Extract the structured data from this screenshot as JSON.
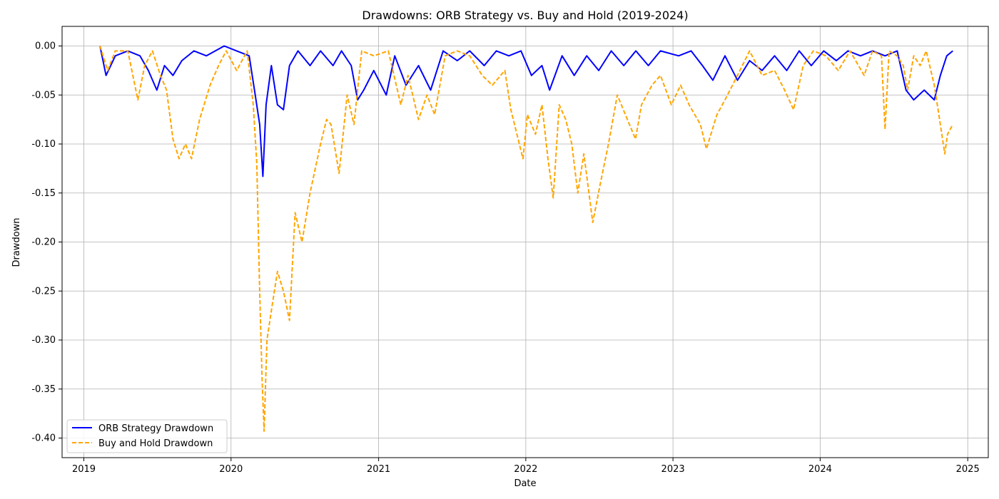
{
  "chart_data": {
    "type": "line",
    "title": "Drawdowns: ORB Strategy vs. Buy and Hold (2019-2024)",
    "xlabel": "Date",
    "ylabel": "Drawdown",
    "xlim": [
      "2018-11-08",
      "2025-02-21"
    ],
    "ylim": [
      -0.42,
      0.02
    ],
    "grid": true,
    "legend_position": "lower-left",
    "x_ticks": [
      "2019",
      "2020",
      "2021",
      "2022",
      "2023",
      "2024",
      "2025"
    ],
    "y_ticks": [
      "0.00",
      "-0.05",
      "-0.10",
      "-0.15",
      "-0.20",
      "-0.25",
      "-0.30",
      "-0.35",
      "-0.40"
    ],
    "series": [
      {
        "name": "ORB Strategy Drawdown",
        "color": "#0000ff",
        "style": "solid",
        "points": [
          [
            "2019-02-10",
            0.0
          ],
          [
            "2019-02-25",
            -0.03
          ],
          [
            "2019-03-20",
            -0.01
          ],
          [
            "2019-04-20",
            -0.005
          ],
          [
            "2019-05-20",
            -0.01
          ],
          [
            "2019-06-10",
            -0.025
          ],
          [
            "2019-07-01",
            -0.045
          ],
          [
            "2019-07-20",
            -0.02
          ],
          [
            "2019-08-10",
            -0.03
          ],
          [
            "2019-09-01",
            -0.015
          ],
          [
            "2019-10-01",
            -0.005
          ],
          [
            "2019-11-01",
            -0.01
          ],
          [
            "2019-12-15",
            0.0
          ],
          [
            "2020-01-15",
            -0.005
          ],
          [
            "2020-02-15",
            -0.01
          ],
          [
            "2020-03-01",
            -0.05
          ],
          [
            "2020-03-12",
            -0.08
          ],
          [
            "2020-03-20",
            -0.133
          ],
          [
            "2020-03-28",
            -0.06
          ],
          [
            "2020-04-10",
            -0.02
          ],
          [
            "2020-04-25",
            -0.06
          ],
          [
            "2020-05-10",
            -0.065
          ],
          [
            "2020-05-25",
            -0.02
          ],
          [
            "2020-06-15",
            -0.005
          ],
          [
            "2020-07-15",
            -0.02
          ],
          [
            "2020-08-10",
            -0.005
          ],
          [
            "2020-09-10",
            -0.02
          ],
          [
            "2020-10-01",
            -0.005
          ],
          [
            "2020-10-25",
            -0.02
          ],
          [
            "2020-11-10",
            -0.055
          ],
          [
            "2020-11-25",
            -0.045
          ],
          [
            "2020-12-20",
            -0.025
          ],
          [
            "2021-01-20",
            -0.05
          ],
          [
            "2021-02-10",
            -0.01
          ],
          [
            "2021-03-10",
            -0.04
          ],
          [
            "2021-04-10",
            -0.02
          ],
          [
            "2021-05-10",
            -0.045
          ],
          [
            "2021-06-10",
            -0.005
          ],
          [
            "2021-07-15",
            -0.015
          ],
          [
            "2021-08-15",
            -0.005
          ],
          [
            "2021-09-20",
            -0.02
          ],
          [
            "2021-10-20",
            -0.005
          ],
          [
            "2021-11-20",
            -0.01
          ],
          [
            "2021-12-20",
            -0.005
          ],
          [
            "2022-01-15",
            -0.03
          ],
          [
            "2022-02-10",
            -0.02
          ],
          [
            "2022-03-01",
            -0.045
          ],
          [
            "2022-04-01",
            -0.01
          ],
          [
            "2022-05-01",
            -0.03
          ],
          [
            "2022-06-01",
            -0.01
          ],
          [
            "2022-07-01",
            -0.025
          ],
          [
            "2022-08-01",
            -0.005
          ],
          [
            "2022-09-01",
            -0.02
          ],
          [
            "2022-10-01",
            -0.005
          ],
          [
            "2022-11-01",
            -0.02
          ],
          [
            "2022-12-01",
            -0.005
          ],
          [
            "2023-01-15",
            -0.01
          ],
          [
            "2023-02-15",
            -0.005
          ],
          [
            "2023-03-15",
            -0.02
          ],
          [
            "2023-04-10",
            -0.035
          ],
          [
            "2023-05-10",
            -0.01
          ],
          [
            "2023-06-10",
            -0.035
          ],
          [
            "2023-07-10",
            -0.015
          ],
          [
            "2023-08-10",
            -0.025
          ],
          [
            "2023-09-10",
            -0.01
          ],
          [
            "2023-10-10",
            -0.025
          ],
          [
            "2023-11-10",
            -0.005
          ],
          [
            "2023-12-10",
            -0.02
          ],
          [
            "2024-01-10",
            -0.005
          ],
          [
            "2024-02-10",
            -0.015
          ],
          [
            "2024-03-10",
            -0.005
          ],
          [
            "2024-04-10",
            -0.01
          ],
          [
            "2024-05-10",
            -0.005
          ],
          [
            "2024-06-10",
            -0.01
          ],
          [
            "2024-07-10",
            -0.005
          ],
          [
            "2024-08-01",
            -0.045
          ],
          [
            "2024-08-20",
            -0.055
          ],
          [
            "2024-09-15",
            -0.045
          ],
          [
            "2024-10-10",
            -0.055
          ],
          [
            "2024-10-25",
            -0.03
          ],
          [
            "2024-11-10",
            -0.01
          ],
          [
            "2024-11-25",
            -0.005
          ]
        ]
      },
      {
        "name": "Buy and Hold Drawdown",
        "color": "#ffa500",
        "style": "dashed",
        "points": [
          [
            "2019-02-10",
            0.0
          ],
          [
            "2019-03-01",
            -0.025
          ],
          [
            "2019-03-20",
            -0.005
          ],
          [
            "2019-04-20",
            -0.005
          ],
          [
            "2019-05-15",
            -0.055
          ],
          [
            "2019-06-01",
            -0.02
          ],
          [
            "2019-06-20",
            -0.005
          ],
          [
            "2019-07-10",
            -0.03
          ],
          [
            "2019-07-25",
            -0.045
          ],
          [
            "2019-08-10",
            -0.095
          ],
          [
            "2019-08-25",
            -0.115
          ],
          [
            "2019-09-10",
            -0.1
          ],
          [
            "2019-09-25",
            -0.115
          ],
          [
            "2019-10-15",
            -0.075
          ],
          [
            "2019-11-10",
            -0.04
          ],
          [
            "2019-12-01",
            -0.02
          ],
          [
            "2019-12-20",
            -0.005
          ],
          [
            "2020-01-15",
            -0.025
          ],
          [
            "2020-02-10",
            -0.005
          ],
          [
            "2020-02-25",
            -0.06
          ],
          [
            "2020-03-05",
            -0.12
          ],
          [
            "2020-03-12",
            -0.25
          ],
          [
            "2020-03-18",
            -0.34
          ],
          [
            "2020-03-23",
            -0.393
          ],
          [
            "2020-03-30",
            -0.3
          ],
          [
            "2020-04-10",
            -0.27
          ],
          [
            "2020-04-25",
            -0.23
          ],
          [
            "2020-05-10",
            -0.25
          ],
          [
            "2020-05-25",
            -0.28
          ],
          [
            "2020-06-08",
            -0.17
          ],
          [
            "2020-06-25",
            -0.2
          ],
          [
            "2020-07-15",
            -0.15
          ],
          [
            "2020-08-10",
            -0.1
          ],
          [
            "2020-08-25",
            -0.075
          ],
          [
            "2020-09-05",
            -0.08
          ],
          [
            "2020-09-25",
            -0.13
          ],
          [
            "2020-10-15",
            -0.05
          ],
          [
            "2020-11-01",
            -0.08
          ],
          [
            "2020-11-20",
            -0.005
          ],
          [
            "2020-12-20",
            -0.01
          ],
          [
            "2021-01-25",
            -0.005
          ],
          [
            "2021-02-25",
            -0.06
          ],
          [
            "2021-03-15",
            -0.03
          ],
          [
            "2021-04-10",
            -0.075
          ],
          [
            "2021-05-01",
            -0.05
          ],
          [
            "2021-05-20",
            -0.07
          ],
          [
            "2021-06-15",
            -0.01
          ],
          [
            "2021-07-15",
            -0.005
          ],
          [
            "2021-08-15",
            -0.01
          ],
          [
            "2021-09-15",
            -0.03
          ],
          [
            "2021-10-10",
            -0.04
          ],
          [
            "2021-11-10",
            -0.025
          ],
          [
            "2021-11-25",
            -0.065
          ],
          [
            "2021-12-10",
            -0.09
          ],
          [
            "2021-12-25",
            -0.115
          ],
          [
            "2022-01-05",
            -0.07
          ],
          [
            "2022-01-25",
            -0.09
          ],
          [
            "2022-02-10",
            -0.06
          ],
          [
            "2022-02-25",
            -0.115
          ],
          [
            "2022-03-10",
            -0.155
          ],
          [
            "2022-03-25",
            -0.06
          ],
          [
            "2022-04-10",
            -0.075
          ],
          [
            "2022-04-25",
            -0.1
          ],
          [
            "2022-05-10",
            -0.15
          ],
          [
            "2022-05-25",
            -0.11
          ],
          [
            "2022-06-16",
            -0.18
          ],
          [
            "2022-07-05",
            -0.14
          ],
          [
            "2022-07-25",
            -0.1
          ],
          [
            "2022-08-16",
            -0.05
          ],
          [
            "2022-09-05",
            -0.07
          ],
          [
            "2022-09-30",
            -0.095
          ],
          [
            "2022-10-15",
            -0.06
          ],
          [
            "2022-11-10",
            -0.04
          ],
          [
            "2022-12-01",
            -0.03
          ],
          [
            "2022-12-28",
            -0.06
          ],
          [
            "2023-01-20",
            -0.04
          ],
          [
            "2023-02-10",
            -0.06
          ],
          [
            "2023-03-10",
            -0.08
          ],
          [
            "2023-03-25",
            -0.105
          ],
          [
            "2023-04-20",
            -0.07
          ],
          [
            "2023-05-10",
            -0.055
          ],
          [
            "2023-06-10",
            -0.03
          ],
          [
            "2023-07-10",
            -0.005
          ],
          [
            "2023-08-10",
            -0.03
          ],
          [
            "2023-09-10",
            -0.025
          ],
          [
            "2023-10-05",
            -0.045
          ],
          [
            "2023-10-27",
            -0.065
          ],
          [
            "2023-11-20",
            -0.02
          ],
          [
            "2023-12-15",
            -0.005
          ],
          [
            "2024-01-15",
            -0.01
          ],
          [
            "2024-02-15",
            -0.025
          ],
          [
            "2024-03-15",
            -0.005
          ],
          [
            "2024-04-19",
            -0.03
          ],
          [
            "2024-05-10",
            -0.005
          ],
          [
            "2024-06-01",
            -0.01
          ],
          [
            "2024-06-10",
            -0.085
          ],
          [
            "2024-06-20",
            -0.005
          ],
          [
            "2024-07-10",
            -0.01
          ],
          [
            "2024-07-25",
            -0.02
          ],
          [
            "2024-08-05",
            -0.045
          ],
          [
            "2024-08-20",
            -0.01
          ],
          [
            "2024-09-05",
            -0.02
          ],
          [
            "2024-09-20",
            -0.005
          ],
          [
            "2024-10-10",
            -0.04
          ],
          [
            "2024-10-25",
            -0.08
          ],
          [
            "2024-11-05",
            -0.11
          ],
          [
            "2024-11-12",
            -0.09
          ],
          [
            "2024-11-25",
            -0.08
          ]
        ]
      }
    ]
  }
}
